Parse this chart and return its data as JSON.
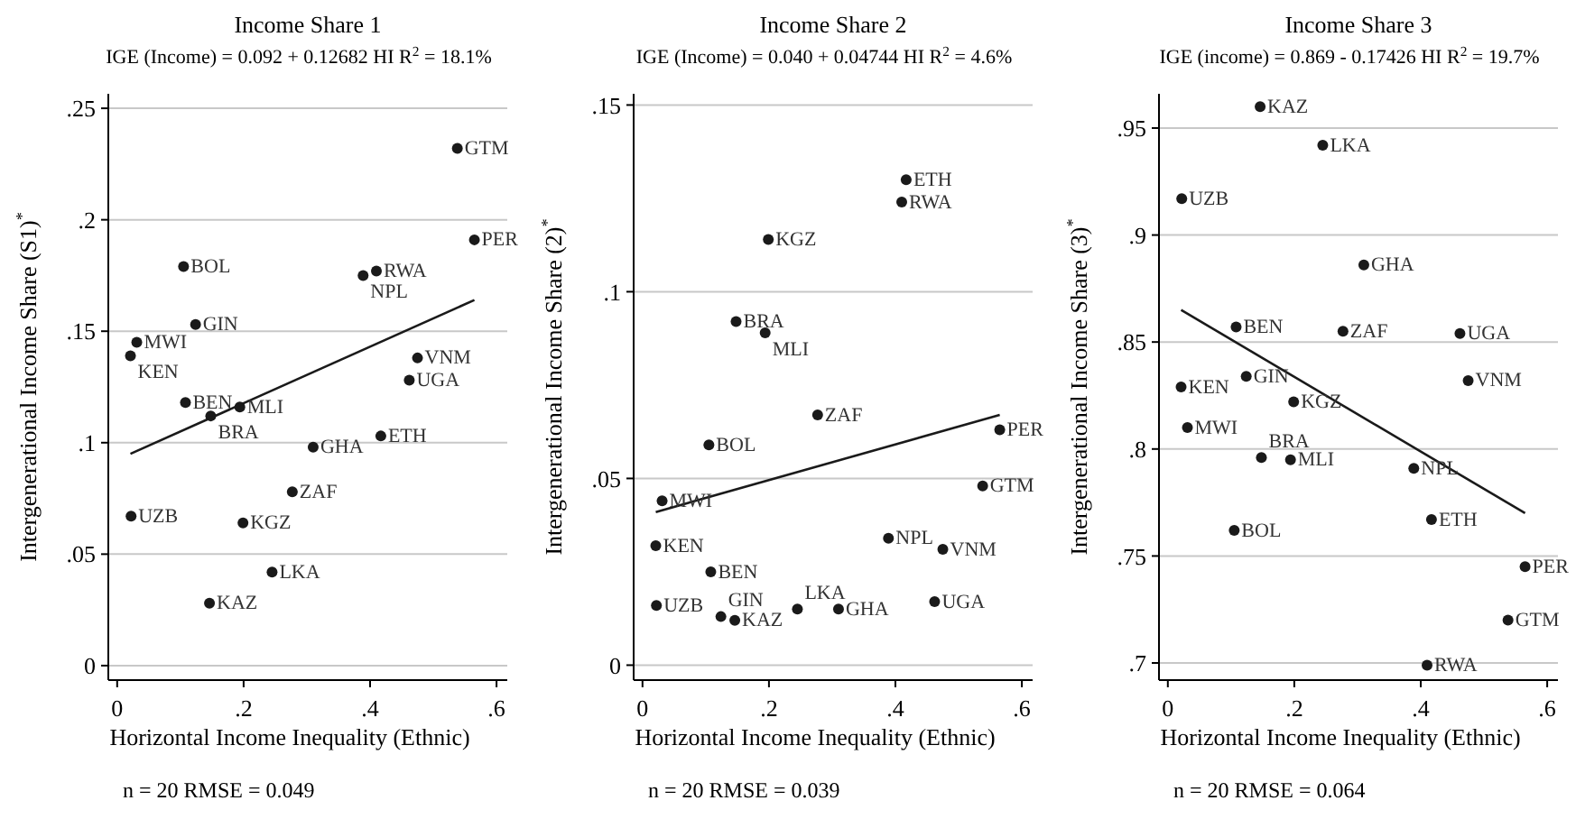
{
  "chart_data": [
    {
      "type": "scatter",
      "title": "Income Share 1",
      "subtitle": "IGE (Income) = 0.092 + 0.12682 HI R$^{2}$ = 18.1%",
      "xlabel": "Horizontal Income Inequality (Ethnic)",
      "ylabel": "Intergenerational Income Share (S1)$^{*}$",
      "xlim": [
        -0.014,
        0.617
      ],
      "xticks": [
        {
          "value": 0,
          "label": "0"
        },
        {
          "value": 0.2,
          "label": ".2"
        },
        {
          "value": 0.4,
          "label": ".4"
        },
        {
          "value": 0.6,
          "label": ".6"
        }
      ],
      "ylim": [
        -0.0065,
        0.2565
      ],
      "yticks": [
        0,
        {
          "value": 0.05,
          "label": ".05"
        },
        {
          "value": 0.1,
          "label": ".1"
        },
        {
          "value": 0.15,
          "label": ".15"
        },
        {
          "value": 0.2,
          "label": ".2"
        },
        {
          "value": 0.25,
          "label": ".25"
        }
      ],
      "grid": "y",
      "marker": "circle",
      "series": [
        {
          "color": "#1a1a1a",
          "x": [
            0.022,
            0.021,
            0.031,
            0.105,
            0.108,
            0.124,
            0.146,
            0.148,
            0.194,
            0.199,
            0.245,
            0.277,
            0.31,
            0.389,
            0.41,
            0.417,
            0.462,
            0.475,
            0.538,
            0.565
          ],
          "values": [
            0.067,
            0.139,
            0.145,
            0.179,
            0.118,
            0.153,
            0.028,
            0.112,
            0.116,
            0.064,
            0.042,
            0.078,
            0.098,
            0.175,
            0.177,
            0.103,
            0.128,
            0.138,
            0.232,
            0.191
          ]
        },
        {
          "type": "line",
          "marker": "none",
          "color": "#1a1a1a",
          "x": [
            0.021,
            0.565
          ],
          "values": [
            0.095,
            0.164
          ]
        }
      ],
      "annotations": [
        {
          "text": "UZB",
          "x": 0.022,
          "y": 0.067
        },
        {
          "text": "KEN",
          "x": 0.021,
          "y": 0.139
        },
        {
          "text": "MWI",
          "x": 0.031,
          "y": 0.145
        },
        {
          "text": "BOL",
          "x": 0.105,
          "y": 0.179
        },
        {
          "text": "BEN",
          "x": 0.108,
          "y": 0.118
        },
        {
          "text": "GIN",
          "x": 0.124,
          "y": 0.153
        },
        {
          "text": "KAZ",
          "x": 0.146,
          "y": 0.028
        },
        {
          "text": "BRA",
          "x": 0.148,
          "y": 0.112
        },
        {
          "text": "MLI",
          "x": 0.194,
          "y": 0.116
        },
        {
          "text": "KGZ",
          "x": 0.199,
          "y": 0.064
        },
        {
          "text": "LKA",
          "x": 0.245,
          "y": 0.042
        },
        {
          "text": "ZAF",
          "x": 0.277,
          "y": 0.078
        },
        {
          "text": "GHA",
          "x": 0.31,
          "y": 0.098
        },
        {
          "text": "NPL",
          "x": 0.389,
          "y": 0.175
        },
        {
          "text": "RWA",
          "x": 0.41,
          "y": 0.177
        },
        {
          "text": "ETH",
          "x": 0.417,
          "y": 0.103
        },
        {
          "text": "UGA",
          "x": 0.462,
          "y": 0.128
        },
        {
          "text": "VNM",
          "x": 0.475,
          "y": 0.138
        },
        {
          "text": "GTM",
          "x": 0.538,
          "y": 0.232
        },
        {
          "text": "PER",
          "x": 0.565,
          "y": 0.191
        },
        "n = 20    RMSE = 0.049"
      ]
    },
    {
      "type": "scatter",
      "title": "Income Share 2",
      "subtitle": "IGE (Income) = 0.040 + 0.04744 HI R$^{2}$ = 4.6%",
      "xlabel": "Horizontal Income Inequality (Ethnic)",
      "ylabel": "Intergenerational Income Share (2)$^{*}$",
      "xlim": [
        -0.014,
        0.617
      ],
      "xticks": [
        {
          "value": 0,
          "label": "0"
        },
        {
          "value": 0.2,
          "label": ".2"
        },
        {
          "value": 0.4,
          "label": ".4"
        },
        {
          "value": 0.6,
          "label": ".6"
        }
      ],
      "ylim": [
        -0.004,
        0.153
      ],
      "yticks": [
        0,
        {
          "value": 0.05,
          "label": ".05"
        },
        {
          "value": 0.1,
          "label": ".1"
        },
        {
          "value": 0.15,
          "label": ".15"
        }
      ],
      "grid": "y",
      "marker": "circle",
      "series": [
        {
          "color": "#1a1a1a",
          "x": [
            0.022,
            0.021,
            0.031,
            0.105,
            0.108,
            0.124,
            0.146,
            0.148,
            0.194,
            0.199,
            0.245,
            0.277,
            0.31,
            0.389,
            0.41,
            0.417,
            0.462,
            0.475,
            0.538,
            0.565
          ],
          "values": [
            0.016,
            0.032,
            0.044,
            0.059,
            0.025,
            0.013,
            0.012,
            0.092,
            0.089,
            0.114,
            0.015,
            0.067,
            0.015,
            0.034,
            0.124,
            0.13,
            0.017,
            0.031,
            0.048,
            0.063
          ]
        },
        {
          "type": "line",
          "marker": "none",
          "color": "#1a1a1a",
          "x": [
            0.021,
            0.565
          ],
          "values": [
            0.041,
            0.067
          ]
        }
      ],
      "annotations": [
        {
          "text": "UZB",
          "x": 0.022,
          "y": 0.016
        },
        {
          "text": "KEN",
          "x": 0.021,
          "y": 0.032
        },
        {
          "text": "MWI",
          "x": 0.031,
          "y": 0.044
        },
        {
          "text": "BOL",
          "x": 0.105,
          "y": 0.059
        },
        {
          "text": "BEN",
          "x": 0.108,
          "y": 0.025
        },
        {
          "text": "GIN",
          "x": 0.124,
          "y": 0.013
        },
        {
          "text": "KAZ",
          "x": 0.146,
          "y": 0.012
        },
        {
          "text": "BRA",
          "x": 0.148,
          "y": 0.092
        },
        {
          "text": "MLI",
          "x": 0.194,
          "y": 0.089
        },
        {
          "text": "KGZ",
          "x": 0.199,
          "y": 0.114
        },
        {
          "text": "LKA",
          "x": 0.245,
          "y": 0.015
        },
        {
          "text": "ZAF",
          "x": 0.277,
          "y": 0.067
        },
        {
          "text": "GHA",
          "x": 0.31,
          "y": 0.015
        },
        {
          "text": "NPL",
          "x": 0.389,
          "y": 0.034
        },
        {
          "text": "RWA",
          "x": 0.41,
          "y": 0.124
        },
        {
          "text": "ETH",
          "x": 0.417,
          "y": 0.13
        },
        {
          "text": "UGA",
          "x": 0.462,
          "y": 0.017
        },
        {
          "text": "VNM",
          "x": 0.475,
          "y": 0.031
        },
        {
          "text": "GTM",
          "x": 0.538,
          "y": 0.048
        },
        {
          "text": "PER",
          "x": 0.565,
          "y": 0.063
        },
        "n = 20    RMSE = 0.039"
      ]
    },
    {
      "type": "scatter",
      "title": "Income Share 3",
      "subtitle": "IGE (income) = 0.869 - 0.17426 HI R$^{2}$ = 19.7%",
      "xlabel": "Horizontal Income Inequality (Ethnic)",
      "ylabel": "Intergenerational Income Share (3)$^{*}$",
      "xlim": [
        -0.014,
        0.617
      ],
      "xticks": [
        {
          "value": 0,
          "label": "0"
        },
        {
          "value": 0.2,
          "label": ".2"
        },
        {
          "value": 0.4,
          "label": ".4"
        },
        {
          "value": 0.6,
          "label": ".6"
        }
      ],
      "ylim": [
        0.692,
        0.966
      ],
      "yticks": [
        {
          "value": 0.7,
          "label": ".7"
        },
        {
          "value": 0.75,
          "label": ".75"
        },
        {
          "value": 0.8,
          "label": ".8"
        },
        {
          "value": 0.85,
          "label": ".85"
        },
        {
          "value": 0.9,
          "label": ".9"
        },
        {
          "value": 0.95,
          "label": ".95"
        }
      ],
      "grid": "y",
      "marker": "circle",
      "series": [
        {
          "color": "#1a1a1a",
          "x": [
            0.022,
            0.021,
            0.031,
            0.105,
            0.108,
            0.124,
            0.146,
            0.148,
            0.194,
            0.199,
            0.245,
            0.277,
            0.31,
            0.389,
            0.41,
            0.417,
            0.462,
            0.475,
            0.538,
            0.565
          ],
          "values": [
            0.917,
            0.829,
            0.81,
            0.762,
            0.857,
            0.834,
            0.96,
            0.796,
            0.795,
            0.822,
            0.942,
            0.855,
            0.886,
            0.791,
            0.699,
            0.767,
            0.854,
            0.832,
            0.72,
            0.745
          ]
        },
        {
          "type": "line",
          "marker": "none",
          "color": "#1a1a1a",
          "x": [
            0.021,
            0.565
          ],
          "values": [
            0.865,
            0.77
          ]
        }
      ],
      "annotations": [
        {
          "text": "UZB",
          "x": 0.022,
          "y": 0.917
        },
        {
          "text": "KEN",
          "x": 0.021,
          "y": 0.829
        },
        {
          "text": "MWI",
          "x": 0.031,
          "y": 0.81
        },
        {
          "text": "BOL",
          "x": 0.105,
          "y": 0.762
        },
        {
          "text": "BEN",
          "x": 0.108,
          "y": 0.857
        },
        {
          "text": "GIN",
          "x": 0.124,
          "y": 0.834
        },
        {
          "text": "KAZ",
          "x": 0.146,
          "y": 0.96
        },
        {
          "text": "BRA",
          "x": 0.148,
          "y": 0.796
        },
        {
          "text": "MLI",
          "x": 0.194,
          "y": 0.795
        },
        {
          "text": "KGZ",
          "x": 0.199,
          "y": 0.822
        },
        {
          "text": "LKA",
          "x": 0.245,
          "y": 0.942
        },
        {
          "text": "ZAF",
          "x": 0.277,
          "y": 0.855
        },
        {
          "text": "GHA",
          "x": 0.31,
          "y": 0.886
        },
        {
          "text": "NPL",
          "x": 0.389,
          "y": 0.791
        },
        {
          "text": "RWA",
          "x": 0.41,
          "y": 0.699
        },
        {
          "text": "ETH",
          "x": 0.417,
          "y": 0.767
        },
        {
          "text": "UGA",
          "x": 0.462,
          "y": 0.854
        },
        {
          "text": "VNM",
          "x": 0.475,
          "y": 0.832
        },
        {
          "text": "GTM",
          "x": 0.538,
          "y": 0.72
        },
        {
          "text": "PER",
          "x": 0.565,
          "y": 0.745
        },
        "n = 20    RMSE = 0.064"
      ]
    }
  ]
}
